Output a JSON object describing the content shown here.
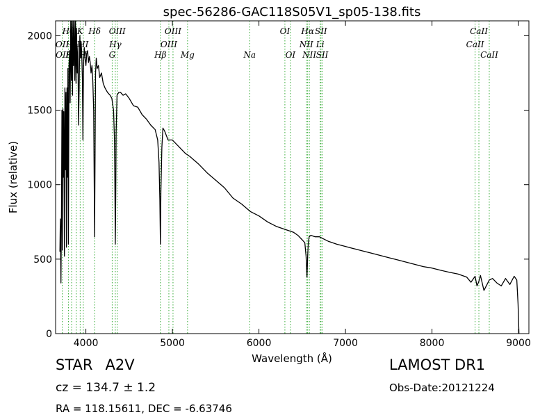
{
  "chart_data": {
    "type": "line",
    "title": "spec-56286-GAC118S05V1_sp05-138.fits",
    "xlabel": "Wavelength (Å)",
    "ylabel": "Flux (relative)",
    "xlim": [
      3650,
      9120
    ],
    "ylim": [
      0,
      2100
    ],
    "xticks": [
      4000,
      5000,
      6000,
      7000,
      8000,
      9000
    ],
    "yticks": [
      0,
      500,
      1000,
      1500,
      2000
    ],
    "grid": false,
    "line_color": "#000000",
    "marker_color": "#33aa33",
    "series": [
      {
        "x": [
          3700,
          3705,
          3712,
          3718,
          3723,
          3728,
          3734,
          3740,
          3745,
          3752,
          3758,
          3764,
          3770,
          3775,
          3782,
          3788,
          3792,
          3798,
          3805,
          3812,
          3818,
          3825,
          3832,
          3838,
          3845,
          3852,
          3858,
          3865,
          3872,
          3880,
          3886,
          3892,
          3900,
          3908,
          3915,
          3922,
          3930,
          3938,
          3945,
          3952,
          3960,
          3966,
          3970,
          3975,
          3982,
          3990,
          4000,
          4010,
          4020,
          4030,
          4040,
          4050,
          4060,
          4070,
          4080,
          4090,
          4095,
          4101,
          4106,
          4112,
          4120,
          4130,
          4145,
          4160,
          4180,
          4200,
          4220,
          4250,
          4280,
          4300,
          4320,
          4330,
          4335,
          4340,
          4345,
          4350,
          4360,
          4380,
          4400,
          4430,
          4460,
          4500,
          4550,
          4600,
          4650,
          4700,
          4750,
          4800,
          4830,
          4845,
          4855,
          4861,
          4867,
          4878,
          4890,
          4910,
          4950,
          5000,
          5050,
          5100,
          5150,
          5200,
          5300,
          5400,
          5500,
          5600,
          5700,
          5800,
          5900,
          6000,
          6100,
          6200,
          6300,
          6400,
          6450,
          6500,
          6530,
          6545,
          6555,
          6563,
          6570,
          6580,
          6600,
          6650,
          6700,
          6750,
          6800,
          6900,
          7000,
          7100,
          7200,
          7300,
          7400,
          7500,
          7600,
          7700,
          7800,
          7900,
          8000,
          8100,
          8200,
          8300,
          8400,
          8450,
          8498,
          8520,
          8542,
          8560,
          8600,
          8662,
          8700,
          8750,
          8800,
          8850,
          8900,
          8950,
          8980,
          8995,
          9005
        ],
        "y": [
          550,
          770,
          340,
          850,
          1500,
          560,
          1510,
          1050,
          1490,
          520,
          1650,
          1100,
          1620,
          580,
          1650,
          1050,
          1780,
          600,
          1800,
          1900,
          1550,
          2100,
          1700,
          2100,
          1600,
          2100,
          1800,
          2100,
          1700,
          2100,
          1680,
          2050,
          1750,
          1920,
          1400,
          1650,
          2000,
          1850,
          1960,
          1880,
          1700,
          1300,
          1620,
          1850,
          1920,
          1850,
          1800,
          1880,
          1900,
          1820,
          1860,
          1820,
          1750,
          1800,
          1700,
          1500,
          1100,
          650,
          1200,
          1750,
          1850,
          1780,
          1800,
          1720,
          1750,
          1680,
          1650,
          1620,
          1600,
          1580,
          1500,
          1300,
          1000,
          600,
          900,
          1350,
          1600,
          1620,
          1620,
          1600,
          1610,
          1580,
          1530,
          1520,
          1470,
          1440,
          1400,
          1370,
          1300,
          1150,
          900,
          600,
          950,
          1250,
          1380,
          1360,
          1300,
          1300,
          1270,
          1240,
          1210,
          1190,
          1140,
          1080,
          1030,
          980,
          910,
          870,
          820,
          790,
          750,
          720,
          700,
          680,
          660,
          630,
          610,
          520,
          380,
          520,
          600,
          650,
          660,
          650,
          650,
          635,
          620,
          600,
          585,
          570,
          555,
          540,
          525,
          510,
          495,
          480,
          465,
          450,
          440,
          425,
          412,
          400,
          380,
          345,
          385,
          320,
          350,
          390,
          290,
          360,
          370,
          340,
          320,
          370,
          330,
          385,
          360,
          200,
          0
        ]
      }
    ]
  },
  "lines": {
    "top": [
      {
        "label": "Hθ",
        "x": 3798
      },
      {
        "label": "K",
        "x": 3934
      },
      {
        "label": "Hδ",
        "x": 4101
      },
      {
        "label": "OIII",
        "x": 4363
      },
      {
        "label": "OIII",
        "x": 5007
      },
      {
        "label": "OI",
        "x": 6300
      },
      {
        "label": "Hα",
        "x": 6563
      },
      {
        "label": "SII",
        "x": 6717
      },
      {
        "label": "CaII",
        "x": 8542
      }
    ],
    "row2": [
      {
        "label": "OII",
        "x": 3727
      },
      {
        "label": "Hε",
        "x": 3835
      },
      {
        "label": "H",
        "x": 3889
      },
      {
        "label": "HI",
        "x": 3970
      },
      {
        "label": "Hγ",
        "x": 4340
      },
      {
        "label": "OIII",
        "x": 4959
      },
      {
        "label": "NII",
        "x": 6548
      },
      {
        "label": "Li",
        "x": 6708
      },
      {
        "label": "CaII",
        "x": 8498
      }
    ],
    "row3": [
      {
        "label": "OII",
        "x": 3729
      },
      {
        "label": "Hη",
        "x": 3835
      },
      {
        "label": "H",
        "x": 3970
      },
      {
        "label": "G",
        "x": 4304
      },
      {
        "label": "Hβ",
        "x": 4861
      },
      {
        "label": "Mg",
        "x": 5175
      },
      {
        "label": "Na",
        "x": 5893
      },
      {
        "label": "OI",
        "x": 6364
      },
      {
        "label": "NII",
        "x": 6583
      },
      {
        "label": "SII",
        "x": 6731
      },
      {
        "label": "CaII",
        "x": 8662
      }
    ]
  },
  "info": {
    "class_label": "STAR",
    "subclass": "A2V",
    "survey": "LAMOST DR1",
    "cz": "cz = 134.7  ± 1.2",
    "obs_date": "Obs-Date:20121224",
    "radec": "RA = 118.15611, DEC = -6.63746"
  }
}
